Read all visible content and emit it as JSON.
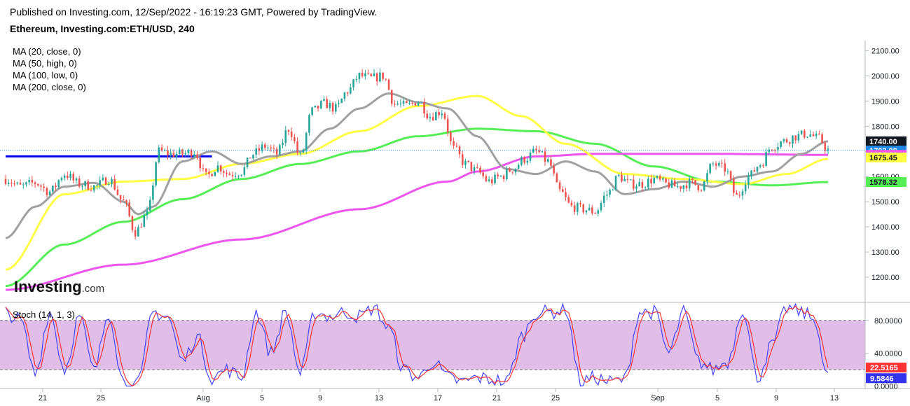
{
  "header": {
    "published": "Published on Investing.com, 12/Sep/2022 - 16:19:23 GMT, Powered by TradingView.",
    "symbol": "Ethereum, Investing.com:ETH/USD, 240"
  },
  "legend": [
    "MA (20, close, 0)",
    "MA (50, high, 0)",
    "MA (100, low, 0)",
    "MA (200, close, 0)"
  ],
  "watermark": {
    "word": "Investing",
    "suffix": ".com"
  },
  "colors": {
    "up": "#26a69a",
    "down": "#ef5350",
    "ma20": "#a0a0a0",
    "ma50": "#ffff44",
    "ma100": "#55ee55",
    "ma200": "#ee55ee",
    "hline": "#0000ee",
    "stoch_k": "#4444ff",
    "stoch_d": "#ff3333",
    "stoch_band": "#e1bee7"
  },
  "chart_data": [
    {
      "type": "candlestick",
      "y_ticks": [
        "1200.00",
        "1300.00",
        "1400.00",
        "1500.00",
        "1600.00",
        "1700.00",
        "1800.00",
        "1900.00",
        "2000.00",
        "2100.00"
      ],
      "ylim": [
        1100,
        2140
      ],
      "x_ticks": [
        "21",
        "25",
        "Aug",
        "5",
        "9",
        "13",
        "17",
        "21",
        "25",
        "Sep",
        "5",
        "9",
        "13"
      ],
      "tags": [
        {
          "label": "1740.00",
          "value": 1740.0,
          "bg": "#131722",
          "fg": "#ffffff"
        },
        {
          "label": "1703.09",
          "value": 1703.09,
          "bg": "#1e88e5",
          "fg": "#ffffff"
        },
        {
          "label": "1686.20",
          "value": 1686.2,
          "bg": "#ee55ee",
          "fg": "#ffffff"
        },
        {
          "label": "1675.45",
          "value": 1675.45,
          "bg": "#ffff44",
          "fg": "#131722"
        },
        {
          "label": "1578.32",
          "value": 1578.32,
          "bg": "#55ee55",
          "fg": "#131722"
        }
      ],
      "horizontal_level": 1680,
      "close_anchors": [
        [
          0,
          1590
        ],
        [
          5,
          1560
        ],
        [
          10,
          1575
        ],
        [
          15,
          1540
        ],
        [
          20,
          1610
        ],
        [
          25,
          1570
        ],
        [
          30,
          1560
        ],
        [
          35,
          1590
        ],
        [
          40,
          1500
        ],
        [
          44,
          1380
        ],
        [
          48,
          1450
        ],
        [
          52,
          1700
        ],
        [
          56,
          1690
        ],
        [
          60,
          1690
        ],
        [
          64,
          1700
        ],
        [
          68,
          1600
        ],
        [
          72,
          1640
        ],
        [
          76,
          1610
        ],
        [
          80,
          1620
        ],
        [
          84,
          1690
        ],
        [
          88,
          1720
        ],
        [
          92,
          1690
        ],
        [
          96,
          1790
        ],
        [
          100,
          1680
        ],
        [
          104,
          1860
        ],
        [
          108,
          1890
        ],
        [
          112,
          1870
        ],
        [
          116,
          1940
        ],
        [
          120,
          2000
        ],
        [
          124,
          1990
        ],
        [
          128,
          2000
        ],
        [
          132,
          1890
        ],
        [
          136,
          1880
        ],
        [
          140,
          1900
        ],
        [
          144,
          1840
        ],
        [
          148,
          1860
        ],
        [
          152,
          1710
        ],
        [
          156,
          1650
        ],
        [
          160,
          1620
        ],
        [
          164,
          1580
        ],
        [
          168,
          1600
        ],
        [
          172,
          1630
        ],
        [
          176,
          1670
        ],
        [
          180,
          1700
        ],
        [
          184,
          1660
        ],
        [
          188,
          1540
        ],
        [
          192,
          1480
        ],
        [
          196,
          1470
        ],
        [
          200,
          1460
        ],
        [
          204,
          1530
        ],
        [
          208,
          1600
        ],
        [
          212,
          1570
        ],
        [
          216,
          1570
        ],
        [
          220,
          1590
        ],
        [
          224,
          1570
        ],
        [
          228,
          1560
        ],
        [
          232,
          1575
        ],
        [
          236,
          1560
        ],
        [
          240,
          1650
        ],
        [
          244,
          1630
        ],
        [
          248,
          1520
        ],
        [
          252,
          1600
        ],
        [
          256,
          1650
        ],
        [
          260,
          1720
        ],
        [
          264,
          1740
        ],
        [
          268,
          1760
        ],
        [
          272,
          1770
        ],
        [
          276,
          1750
        ],
        [
          279,
          1705
        ]
      ],
      "ma_anchors": {
        "ma20": [
          [
            0,
            1355
          ],
          [
            10,
            1480
          ],
          [
            20,
            1560
          ],
          [
            30,
            1575
          ],
          [
            40,
            1500
          ],
          [
            45,
            1450
          ],
          [
            50,
            1480
          ],
          [
            60,
            1660
          ],
          [
            70,
            1700
          ],
          [
            80,
            1650
          ],
          [
            90,
            1680
          ],
          [
            100,
            1700
          ],
          [
            110,
            1790
          ],
          [
            120,
            1870
          ],
          [
            130,
            1930
          ],
          [
            140,
            1895
          ],
          [
            150,
            1870
          ],
          [
            160,
            1760
          ],
          [
            170,
            1630
          ],
          [
            180,
            1610
          ],
          [
            190,
            1660
          ],
          [
            200,
            1620
          ],
          [
            210,
            1530
          ],
          [
            220,
            1550
          ],
          [
            230,
            1580
          ],
          [
            240,
            1560
          ],
          [
            250,
            1600
          ],
          [
            260,
            1620
          ],
          [
            270,
            1690
          ],
          [
            279,
            1740
          ]
        ],
        "ma50": [
          [
            0,
            1230
          ],
          [
            20,
            1530
          ],
          [
            40,
            1580
          ],
          [
            60,
            1590
          ],
          [
            80,
            1650
          ],
          [
            100,
            1690
          ],
          [
            120,
            1780
          ],
          [
            140,
            1880
          ],
          [
            160,
            1920
          ],
          [
            175,
            1840
          ],
          [
            190,
            1730
          ],
          [
            210,
            1610
          ],
          [
            230,
            1590
          ],
          [
            250,
            1570
          ],
          [
            265,
            1610
          ],
          [
            279,
            1670
          ]
        ],
        "ma100": [
          [
            0,
            1165
          ],
          [
            20,
            1330
          ],
          [
            40,
            1420
          ],
          [
            60,
            1510
          ],
          [
            80,
            1590
          ],
          [
            100,
            1650
          ],
          [
            120,
            1700
          ],
          [
            140,
            1760
          ],
          [
            160,
            1790
          ],
          [
            180,
            1780
          ],
          [
            200,
            1730
          ],
          [
            220,
            1640
          ],
          [
            240,
            1580
          ],
          [
            260,
            1565
          ],
          [
            279,
            1578
          ]
        ],
        "ma200": [
          [
            0,
            1150
          ],
          [
            40,
            1250
          ],
          [
            80,
            1350
          ],
          [
            120,
            1470
          ],
          [
            150,
            1580
          ],
          [
            160,
            1620
          ],
          [
            180,
            1680
          ],
          [
            200,
            1690
          ],
          [
            240,
            1690
          ],
          [
            279,
            1686
          ]
        ]
      }
    },
    {
      "type": "stochastic",
      "title": "Stoch (14, 1, 3)",
      "y_ticks": [
        "40.0000",
        "80.0000"
      ],
      "zero_label": "0.0000",
      "upper_band": 80,
      "lower_band": 20,
      "ylim": [
        -3,
        102
      ],
      "tags": [
        {
          "label": "22.5165",
          "value": 22.5165,
          "bg": "#ff3333",
          "fg": "#ffffff"
        },
        {
          "label": "9.5846",
          "value": 9.5846,
          "bg": "#3333ee",
          "fg": "#ffffff"
        }
      ],
      "k_anchors": [
        [
          0,
          90
        ],
        [
          5,
          80
        ],
        [
          10,
          15
        ],
        [
          15,
          90
        ],
        [
          20,
          20
        ],
        [
          25,
          85
        ],
        [
          30,
          18
        ],
        [
          35,
          90
        ],
        [
          40,
          5
        ],
        [
          45,
          3
        ],
        [
          50,
          90
        ],
        [
          55,
          85
        ],
        [
          60,
          30
        ],
        [
          65,
          60
        ],
        [
          70,
          10
        ],
        [
          75,
          20
        ],
        [
          80,
          10
        ],
        [
          85,
          90
        ],
        [
          90,
          40
        ],
        [
          95,
          90
        ],
        [
          100,
          15
        ],
        [
          105,
          90
        ],
        [
          110,
          85
        ],
        [
          115,
          90
        ],
        [
          120,
          85
        ],
        [
          125,
          95
        ],
        [
          130,
          70
        ],
        [
          135,
          20
        ],
        [
          140,
          10
        ],
        [
          145,
          30
        ],
        [
          150,
          10
        ],
        [
          155,
          5
        ],
        [
          160,
          10
        ],
        [
          165,
          8
        ],
        [
          170,
          5
        ],
        [
          175,
          60
        ],
        [
          180,
          90
        ],
        [
          185,
          90
        ],
        [
          190,
          95
        ],
        [
          195,
          5
        ],
        [
          200,
          10
        ],
        [
          205,
          5
        ],
        [
          210,
          8
        ],
        [
          215,
          90
        ],
        [
          220,
          90
        ],
        [
          225,
          40
        ],
        [
          230,
          90
        ],
        [
          235,
          30
        ],
        [
          240,
          20
        ],
        [
          245,
          30
        ],
        [
          250,
          95
        ],
        [
          255,
          10
        ],
        [
          260,
          50
        ],
        [
          265,
          95
        ],
        [
          270,
          90
        ],
        [
          275,
          80
        ],
        [
          278,
          15
        ],
        [
          279,
          10
        ]
      ]
    }
  ]
}
